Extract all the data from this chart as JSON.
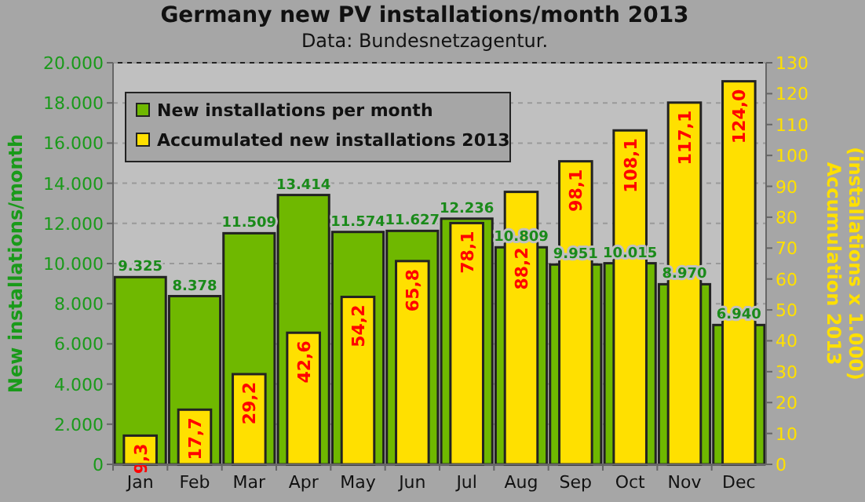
{
  "chart_data": {
    "type": "bar",
    "title": "Germany new PV installations/month  2013",
    "subtitle": "Data: Bundesnetzagentur.",
    "ylabel": "New installations/month",
    "y2label": "Accumulation 2013\n(installations x 1.000)",
    "categories": [
      "Jan",
      "Feb",
      "Mar",
      "Apr",
      "May",
      "Jun",
      "Jul",
      "Aug",
      "Sep",
      "Oct",
      "Nov",
      "Dec"
    ],
    "series": [
      {
        "name": "New installations per month",
        "color": "#6fb800",
        "values": [
          9325,
          8378,
          11509,
          13414,
          11574,
          11627,
          12236,
          10809,
          9951,
          10015,
          8970,
          6940
        ],
        "value_labels": [
          "9.325",
          "8.378",
          "11.509",
          "13.414",
          "11.574",
          "11.627",
          "12.236",
          "10.809",
          "9.951",
          "10.015",
          "8.970",
          "6.940"
        ]
      },
      {
        "name": "Accumulated new installations 2013",
        "color": "#ffe000",
        "axis": "y2",
        "values": [
          9.3,
          17.7,
          29.2,
          42.6,
          54.2,
          65.8,
          78.1,
          88.2,
          98.1,
          108.1,
          117.1,
          124.0
        ],
        "value_labels": [
          "9,3",
          "17,7",
          "29,2",
          "42,6",
          "54,2",
          "65,8",
          "78,1",
          "88,2",
          "98,1",
          "108,1",
          "117,1",
          "124,0"
        ]
      }
    ],
    "ylim": [
      0,
      20000
    ],
    "yticks": [
      {
        "value": 0,
        "label": "0"
      },
      {
        "value": 2000,
        "label": "2.000"
      },
      {
        "value": 4000,
        "label": "4.000"
      },
      {
        "value": 6000,
        "label": "6.000"
      },
      {
        "value": 8000,
        "label": "8.000"
      },
      {
        "value": 10000,
        "label": "10.000"
      },
      {
        "value": 12000,
        "label": "12.000"
      },
      {
        "value": 14000,
        "label": "14.000"
      },
      {
        "value": 16000,
        "label": "16.000"
      },
      {
        "value": 18000,
        "label": "18.000"
      },
      {
        "value": 20000,
        "label": "20.000"
      }
    ],
    "y2lim": [
      0,
      130
    ],
    "y2ticks": [
      0,
      10,
      20,
      30,
      40,
      50,
      60,
      70,
      80,
      90,
      100,
      110,
      120,
      130
    ],
    "grid": "y",
    "legend": "top left"
  }
}
